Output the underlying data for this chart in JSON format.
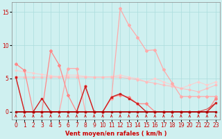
{
  "background_color": "#cff0f0",
  "grid_color": "#aadddd",
  "x_labels": [
    0,
    1,
    2,
    3,
    4,
    5,
    6,
    7,
    8,
    9,
    10,
    11,
    12,
    13,
    14,
    15,
    16,
    17,
    18,
    19,
    20,
    21,
    22,
    23
  ],
  "xlabel": "Vent moyen/en rafales ( km/h )",
  "xlabel_color": "#cc0000",
  "xlabel_fontsize": 6,
  "ylabel_ticks": [
    0,
    5,
    10,
    15
  ],
  "ylim": [
    -1.2,
    16.5
  ],
  "xlim": [
    -0.5,
    23.5
  ],
  "tick_color": "#cc0000",
  "tick_fontsize": 5.5,
  "line_rafales_y": [
    5.2,
    0.0,
    0.0,
    0.0,
    0.0,
    0.0,
    6.5,
    6.5,
    0.0,
    0.0,
    0.0,
    2.0,
    15.5,
    13.0,
    11.2,
    9.2,
    9.3,
    6.3,
    4.3,
    2.3,
    2.3,
    2.3,
    2.3,
    2.3
  ],
  "line_rafales_color": "#ffaaaa",
  "line_rafales_marker": "D",
  "line_rafales_markersize": 2,
  "line_rafales_linewidth": 0.9,
  "line_peak_y": [
    7.2,
    6.2,
    0.0,
    0.0,
    9.2,
    7.0,
    2.5,
    0.0,
    3.8,
    0.0,
    0.0,
    2.2,
    2.5,
    2.2,
    1.2,
    1.2,
    0.0,
    0.0,
    0.0,
    0.0,
    0.0,
    0.0,
    0.0,
    2.0
  ],
  "line_peak_color": "#ff8888",
  "line_peak_marker": "D",
  "line_peak_markersize": 2,
  "line_peak_linewidth": 0.9,
  "line_moyen_y": [
    5.2,
    0.0,
    0.0,
    2.0,
    0.0,
    0.0,
    0.0,
    0.0,
    3.8,
    0.0,
    0.0,
    2.2,
    2.7,
    2.0,
    1.2,
    0.0,
    0.0,
    0.0,
    0.0,
    0.0,
    0.0,
    0.0,
    0.0,
    1.3
  ],
  "line_moyen_color": "#cc2222",
  "line_moyen_marker": "s",
  "line_moyen_markersize": 2,
  "line_moyen_linewidth": 1.0,
  "line_trend1_y": [
    5.2,
    5.2,
    5.2,
    5.2,
    5.2,
    5.2,
    5.2,
    5.2,
    5.2,
    5.2,
    5.2,
    5.2,
    5.2,
    5.0,
    4.8,
    4.5,
    4.3,
    4.0,
    3.8,
    3.5,
    3.3,
    3.0,
    3.5,
    4.0
  ],
  "line_trend1_color": "#ffbbbb",
  "line_trend1_marker": "D",
  "line_trend1_markersize": 1.5,
  "line_trend1_linewidth": 0.7,
  "line_trend2_y": [
    6.2,
    6.0,
    5.8,
    5.6,
    5.4,
    5.3,
    5.5,
    5.5,
    5.3,
    5.2,
    5.2,
    5.3,
    5.5,
    5.2,
    5.0,
    4.5,
    5.0,
    4.5,
    4.0,
    3.5,
    4.0,
    4.5,
    4.0,
    4.5
  ],
  "line_trend2_color": "#ffcccc",
  "line_trend2_marker": "D",
  "line_trend2_markersize": 1.5,
  "line_trend2_linewidth": 0.7,
  "line_zero_y": [
    0.0,
    0.0,
    0.0,
    0.0,
    0.0,
    0.0,
    0.0,
    0.0,
    0.0,
    0.0,
    0.0,
    0.0,
    0.0,
    0.0,
    0.0,
    0.0,
    0.0,
    0.0,
    0.0,
    0.0,
    0.0,
    0.0,
    0.0,
    0.0
  ],
  "line_zero_color": "#aa0000",
  "line_zero_linewidth": 1.2,
  "line_slight1_y": [
    0.0,
    0.0,
    0.0,
    0.0,
    0.0,
    0.0,
    0.0,
    0.0,
    0.0,
    0.0,
    0.0,
    0.0,
    0.0,
    0.0,
    0.0,
    0.0,
    0.0,
    0.0,
    0.0,
    0.0,
    0.0,
    0.0,
    0.4,
    1.3
  ],
  "line_slight1_color": "#dd4444",
  "line_slight1_linewidth": 0.8,
  "line_slight2_y": [
    0.0,
    0.0,
    0.0,
    0.0,
    0.0,
    0.0,
    0.0,
    0.0,
    0.0,
    0.0,
    0.0,
    0.0,
    0.0,
    0.0,
    0.0,
    0.0,
    0.0,
    0.0,
    0.0,
    0.0,
    0.0,
    0.0,
    0.0,
    0.0
  ],
  "line_slight2_color": "#ff9999",
  "line_slight2_linewidth": 0.6,
  "arrow_color": "#cc0000"
}
